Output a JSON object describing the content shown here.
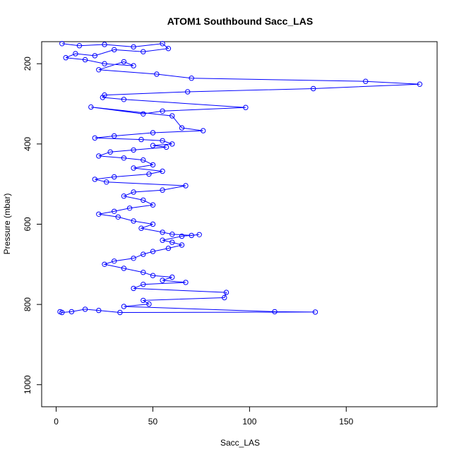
{
  "chart_data": {
    "type": "scatter",
    "title": "ATOM1 Southbound Sacc_LAS",
    "xlabel": "Sacc_LAS",
    "ylabel": "Pressure (mbar)",
    "xlim": [
      -7.5,
      197
    ],
    "ylim": [
      1055,
      145
    ],
    "y_reversed": true,
    "x_ticks": [
      0,
      50,
      100,
      150
    ],
    "y_ticks": [
      200,
      400,
      600,
      800,
      1000
    ],
    "grid": false,
    "legend": "none",
    "marker": "open-circle",
    "connected": true,
    "series_color": "#0000ff",
    "series": [
      {
        "points": [
          [
            3,
            150
          ],
          [
            12,
            155
          ],
          [
            25,
            152
          ],
          [
            40,
            158
          ],
          [
            55,
            150
          ],
          [
            58,
            162
          ],
          [
            45,
            170
          ],
          [
            30,
            165
          ],
          [
            20,
            180
          ],
          [
            10,
            175
          ],
          [
            5,
            185
          ],
          [
            15,
            190
          ],
          [
            25,
            200
          ],
          [
            40,
            205
          ],
          [
            35,
            195
          ],
          [
            22,
            215
          ],
          [
            52,
            226
          ],
          [
            70,
            236
          ],
          [
            160,
            244
          ],
          [
            188,
            251
          ],
          [
            133,
            262
          ],
          [
            68,
            270
          ],
          [
            25,
            278
          ],
          [
            24,
            284
          ],
          [
            35,
            289
          ],
          [
            98,
            309
          ],
          [
            55,
            318
          ],
          [
            45,
            325
          ],
          [
            18,
            308
          ],
          [
            60,
            330
          ],
          [
            65,
            360
          ],
          [
            76,
            367
          ],
          [
            50,
            372
          ],
          [
            30,
            380
          ],
          [
            20,
            385
          ],
          [
            44,
            389
          ],
          [
            55,
            392
          ],
          [
            60,
            400
          ],
          [
            50,
            404
          ],
          [
            57,
            408
          ],
          [
            40,
            415
          ],
          [
            28,
            420
          ],
          [
            22,
            430
          ],
          [
            35,
            435
          ],
          [
            45,
            440
          ],
          [
            50,
            452
          ],
          [
            40,
            460
          ],
          [
            55,
            468
          ],
          [
            48,
            475
          ],
          [
            30,
            482
          ],
          [
            20,
            488
          ],
          [
            26,
            495
          ],
          [
            67,
            504
          ],
          [
            55,
            515
          ],
          [
            40,
            520
          ],
          [
            35,
            530
          ],
          [
            45,
            540
          ],
          [
            50,
            552
          ],
          [
            38,
            560
          ],
          [
            30,
            568
          ],
          [
            22,
            575
          ],
          [
            32,
            582
          ],
          [
            40,
            592
          ],
          [
            50,
            600
          ],
          [
            44,
            610
          ],
          [
            55,
            620
          ],
          [
            60,
            625
          ],
          [
            70,
            628
          ],
          [
            74,
            626
          ],
          [
            65,
            630
          ],
          [
            55,
            640
          ],
          [
            60,
            645
          ],
          [
            65,
            652
          ],
          [
            58,
            660
          ],
          [
            50,
            668
          ],
          [
            45,
            675
          ],
          [
            40,
            685
          ],
          [
            30,
            692
          ],
          [
            25,
            700
          ],
          [
            35,
            710
          ],
          [
            45,
            720
          ],
          [
            50,
            728
          ],
          [
            60,
            732
          ],
          [
            55,
            740
          ],
          [
            67,
            745
          ],
          [
            45,
            750
          ],
          [
            40,
            760
          ],
          [
            88,
            770
          ],
          [
            87,
            783
          ],
          [
            45,
            790
          ],
          [
            48,
            799
          ],
          [
            35,
            805
          ],
          [
            113,
            818
          ],
          [
            134,
            819
          ],
          [
            33,
            820
          ],
          [
            22,
            815
          ],
          [
            15,
            812
          ],
          [
            8,
            818
          ],
          [
            3,
            820
          ],
          [
            2,
            818
          ]
        ]
      }
    ]
  }
}
